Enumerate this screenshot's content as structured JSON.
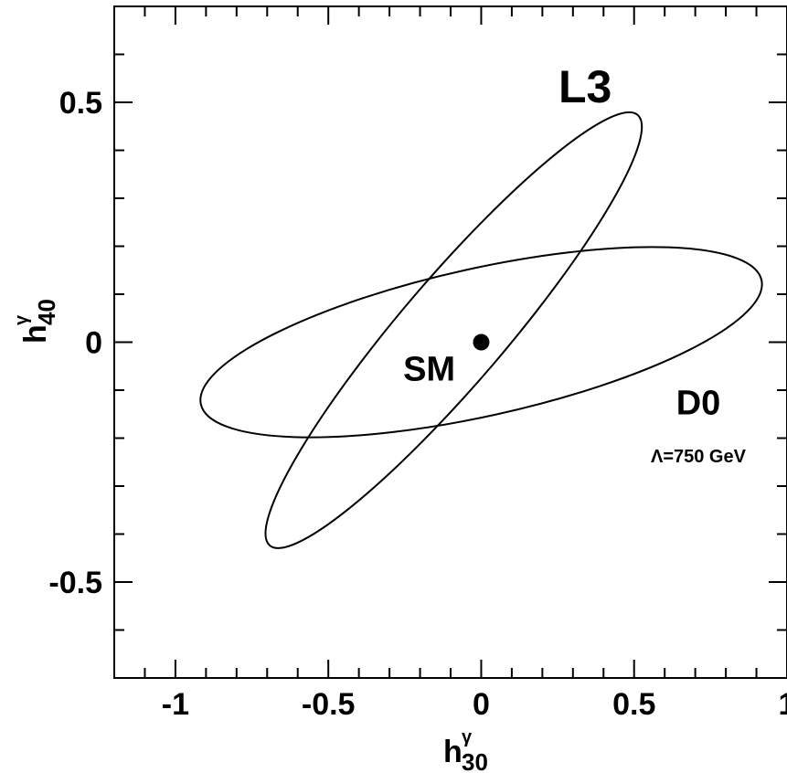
{
  "chart_data": {
    "type": "scatter",
    "xlabel": {
      "base": "h",
      "sup": "γ",
      "sub": "30"
    },
    "ylabel": {
      "base": "h",
      "sup": "γ",
      "sub": "40"
    },
    "xlim": [
      -1.2,
      1.0
    ],
    "ylim": [
      -0.7,
      0.7
    ],
    "x_ticks": [
      -1,
      -0.5,
      0,
      0.5,
      1
    ],
    "x_tick_labels": [
      "-1",
      "-0.5",
      "0",
      "0.5",
      "1"
    ],
    "y_ticks": [
      -0.5,
      0,
      0.5
    ],
    "y_tick_labels": [
      "-0.5",
      "0",
      "0.5"
    ],
    "x_minor_step": 0.1,
    "y_minor_step": 0.1,
    "grid": false,
    "series": [
      {
        "name": "L3",
        "kind": "ellipse",
        "center": [
          -0.09,
          0.025
        ],
        "points": [
          [
            0.5,
            0.48
          ],
          [
            0.54,
            0.44
          ],
          [
            0.3,
            0.15
          ],
          [
            -0.1,
            -0.15
          ],
          [
            -0.68,
            -0.43
          ],
          [
            -0.7,
            -0.39
          ],
          [
            -0.4,
            -0.08
          ],
          [
            0.0,
            0.2
          ]
        ]
      },
      {
        "name": "D0",
        "kind": "ellipse",
        "center": [
          0.0,
          0.0
        ],
        "points": [
          [
            0.52,
            0.21
          ],
          [
            0.91,
            0.12
          ],
          [
            0.6,
            -0.06
          ],
          [
            -0.5,
            -0.21
          ],
          [
            -0.92,
            -0.12
          ],
          [
            -0.6,
            0.07
          ],
          [
            0.3,
            0.2
          ]
        ]
      },
      {
        "name": "SM",
        "kind": "point",
        "points": [
          [
            0.0,
            0.0
          ]
        ]
      }
    ],
    "annotations": [
      {
        "id": "label-l3",
        "text": "L3",
        "x": 0.34,
        "y": 0.5
      },
      {
        "id": "label-sm",
        "text": "SM",
        "x": -0.17,
        "y": -0.08
      },
      {
        "id": "label-d0",
        "text": "D0",
        "x": 0.71,
        "y": -0.15
      },
      {
        "id": "label-lambda",
        "text": "Λ=750 GeV",
        "x": 0.71,
        "y": -0.25
      }
    ]
  }
}
